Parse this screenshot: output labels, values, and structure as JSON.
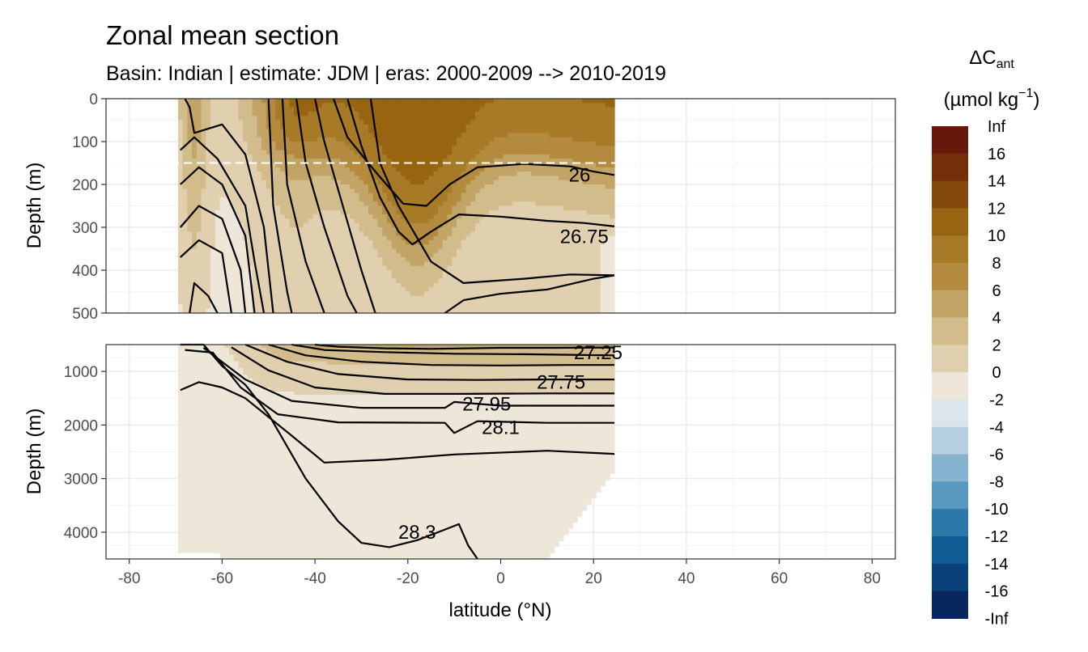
{
  "chart_data": {
    "type": "contour-section",
    "title": "Zonal mean section",
    "subtitle": "Basin: Indian | estimate: JDM  | eras: 2000-2009 --> 2010-2019",
    "xlabel": "latitude (°N)",
    "xlim": [
      -85,
      85
    ],
    "x_ticks": [
      "-80",
      "-60",
      "-40",
      "-20",
      "0",
      "20",
      "40",
      "60",
      "80"
    ],
    "x_tick_values": [
      -80,
      -60,
      -40,
      -20,
      0,
      20,
      40,
      60,
      80
    ],
    "data_lat_range": [
      -69.5,
      24.5
    ],
    "panels": [
      {
        "name": "upper",
        "ylabel": "Depth (m)",
        "ylim": [
          0,
          500
        ],
        "y_ticks": [
          "0",
          "100",
          "200",
          "300",
          "400",
          "500"
        ],
        "y_tick_values": [
          0,
          100,
          200,
          300,
          400,
          500
        ],
        "reference_line_depth": 150,
        "contour_labels": [
          {
            "text": "26",
            "lat": 17,
            "depth": 178
          },
          {
            "text": "26.75",
            "lat": 18,
            "depth": 322
          }
        ]
      },
      {
        "name": "lower",
        "ylabel": "Depth (m)",
        "ylim": [
          500,
          4500
        ],
        "y_ticks": [
          "1000",
          "2000",
          "3000",
          "4000"
        ],
        "y_tick_values": [
          1000,
          2000,
          3000,
          4000
        ],
        "contour_labels": [
          {
            "text": "27.25",
            "lat": 21,
            "depth": 650
          },
          {
            "text": "27.75",
            "lat": 13,
            "depth": 1200
          },
          {
            "text": "27.95",
            "lat": -3,
            "depth": 1610
          },
          {
            "text": "28.1",
            "lat": 0,
            "depth": 2050
          },
          {
            "text": "28.3",
            "lat": -18,
            "depth": 4000
          }
        ]
      }
    ],
    "isopycnal_levels": [
      "26",
      "26.75",
      "27.25",
      "27.75",
      "27.95",
      "28.1",
      "28.3"
    ],
    "legend": {
      "title_main": "ΔC",
      "title_sub": "ant",
      "units_prefix": "(µmol kg",
      "units_sup": "−1",
      "units_suffix": ")",
      "placement": "right",
      "labels": [
        "Inf",
        "16",
        "14",
        "12",
        "10",
        "8",
        "6",
        "4",
        "2",
        "0",
        "-2",
        "-4",
        "-6",
        "-8",
        "-10",
        "-12",
        "-14",
        "-16",
        "-Inf"
      ],
      "colors": [
        "#67180a",
        "#732f07",
        "#844a0b",
        "#976411",
        "#a67a26",
        "#b38a3e",
        "#c2a466",
        "#d2bc8c",
        "#e0d0b0",
        "#ede6d9",
        "#dbe6ec",
        "#b5cfe0",
        "#86b3cf",
        "#5898bf",
        "#2b79ab",
        "#0f5c95",
        "#0a417a",
        "#08275f",
        "#05164b"
      ]
    }
  }
}
